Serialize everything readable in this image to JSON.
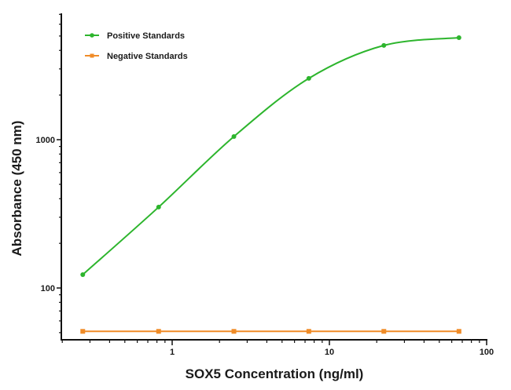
{
  "chart_data": {
    "type": "line",
    "title": "",
    "xlabel": "SOX5 Concentration (ng/ml)",
    "ylabel": "Absorbance (450 nm)",
    "xscale": "log",
    "yscale": "log",
    "xlim": [
      0.2,
      100
    ],
    "ylim": [
      45,
      7000
    ],
    "x_ticks": [
      {
        "value": 1,
        "label": "1"
      },
      {
        "value": 10,
        "label": "10"
      },
      {
        "value": 100,
        "label": "100"
      }
    ],
    "y_ticks": [
      {
        "value": 100,
        "label": "100"
      },
      {
        "value": 1000,
        "label": "1000"
      }
    ],
    "grid": false,
    "legend_position": "top-left",
    "x": [
      0.27,
      0.82,
      2.47,
      7.4,
      22.2,
      66.7
    ],
    "series": [
      {
        "name": "Positive Standards",
        "color": "#2db52d",
        "marker": "circle",
        "smooth": true,
        "values": [
          123,
          351,
          1050,
          2590,
          4320,
          4870
        ]
      },
      {
        "name": "Negative Standards",
        "color": "#f08c28",
        "marker": "square",
        "smooth": false,
        "values": [
          51,
          51,
          51,
          51,
          51,
          51
        ]
      }
    ]
  },
  "legend": {
    "items": [
      {
        "label": "Positive Standards"
      },
      {
        "label": "Negative Standards"
      }
    ]
  },
  "axes": {
    "x_title": "SOX5 Concentration (ng/ml)",
    "y_title": "Absorbance (450 nm)",
    "x_tick_labels": [
      "1",
      "10",
      "100"
    ],
    "y_tick_labels": [
      "100",
      "1000"
    ]
  }
}
